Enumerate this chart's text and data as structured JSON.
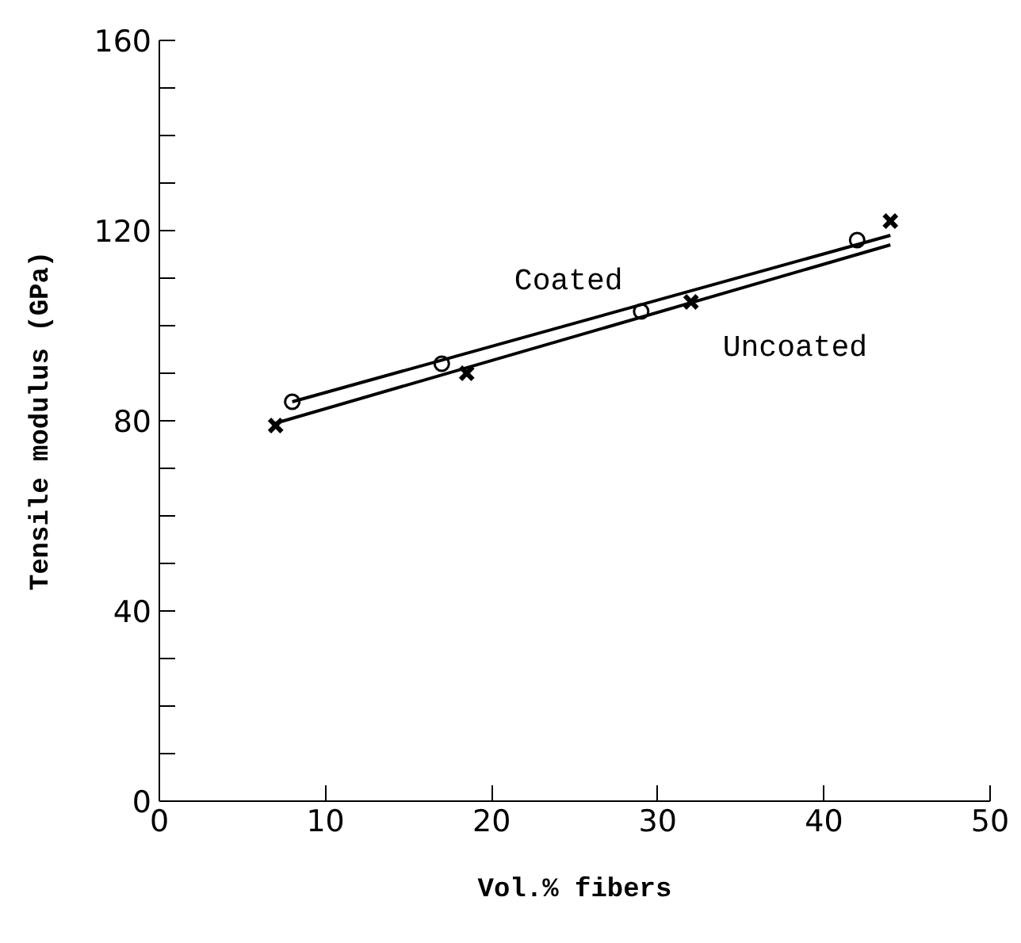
{
  "chart_data": {
    "type": "scatter",
    "xlabel": "Vol.% fibers",
    "ylabel": "Tensile modulus (GPa)",
    "xlim": [
      0,
      50
    ],
    "ylim": [
      0,
      160
    ],
    "xticks": [
      0,
      10,
      20,
      30,
      40,
      50
    ],
    "yticks": [
      0,
      {
        "value": 10,
        "label": null
      },
      {
        "value": 20,
        "label": null
      },
      {
        "value": 30,
        "label": null
      },
      40,
      {
        "value": 50,
        "label": null
      },
      {
        "value": 60,
        "label": null
      },
      {
        "value": 70,
        "label": null
      },
      80,
      {
        "value": 90,
        "label": null
      },
      {
        "value": 100,
        "label": null
      },
      {
        "value": 110,
        "label": null
      },
      120,
      {
        "value": 130,
        "label": null
      },
      {
        "value": 140,
        "label": null
      },
      {
        "value": 150,
        "label": null
      },
      160
    ],
    "grid": false,
    "series": [
      {
        "name": "Coated",
        "marker": "circle",
        "color": "#000000",
        "x": [
          8,
          17,
          29,
          42
        ],
        "values": [
          84,
          92,
          103,
          118
        ]
      },
      {
        "name": "Uncoated",
        "marker": "cross",
        "color": "#000000",
        "x": [
          7,
          18.5,
          32,
          44
        ],
        "values": [
          79,
          90,
          105,
          122
        ]
      },
      {
        "type": "line",
        "color": "#000000",
        "x": [
          8,
          44
        ],
        "values": [
          84,
          119
        ]
      },
      {
        "type": "line",
        "color": "#000000",
        "x": [
          7,
          44
        ],
        "values": [
          79.5,
          117
        ]
      }
    ]
  }
}
